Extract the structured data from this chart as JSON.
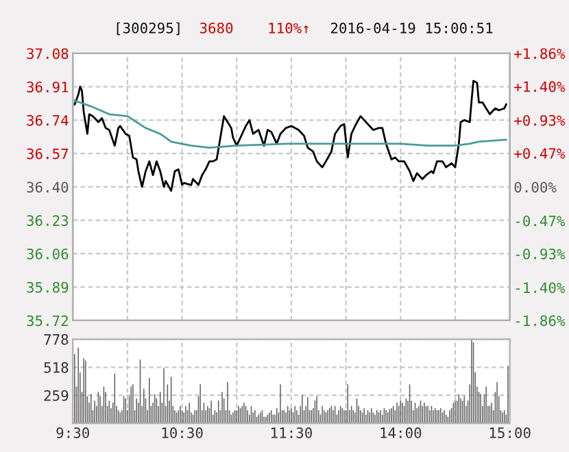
{
  "chart_data": [
    {
      "type": "line",
      "tick_labels": "y",
      "grid": true,
      "legend": false,
      "annotations": [
        "[300295]",
        "3680",
        "110%↑",
        "2016-04-19 15:00:51"
      ],
      "categories": [
        null,
        null,
        null,
        null,
        null,
        null,
        null,
        null,
        null,
        null,
        null,
        null,
        null,
        null,
        null,
        null,
        null,
        null,
        null,
        null,
        null,
        null,
        null,
        null,
        null,
        null,
        null,
        null,
        null,
        null,
        null,
        null,
        null,
        null,
        null,
        null,
        null,
        null,
        null,
        null,
        null,
        null,
        null,
        null,
        null,
        null,
        null,
        null,
        null,
        null,
        null,
        null,
        null,
        null,
        null,
        null,
        null,
        null,
        null,
        null,
        null,
        null,
        null,
        null,
        null,
        null,
        null,
        null,
        null,
        null,
        null,
        null,
        null,
        null,
        null,
        null,
        null,
        null,
        null,
        null,
        null,
        null,
        null,
        null,
        null,
        null,
        null,
        null,
        null,
        null,
        null,
        null,
        null,
        null,
        null,
        null,
        null,
        null,
        null,
        null,
        null,
        null,
        null,
        null,
        null,
        null,
        null,
        null,
        null,
        null,
        null,
        null,
        null,
        null,
        null,
        null,
        null,
        null,
        null,
        null,
        null,
        null,
        null,
        null,
        null,
        null,
        null,
        null,
        null,
        null,
        null,
        null,
        null,
        null,
        null,
        null,
        null,
        null,
        null,
        null,
        null,
        null,
        null,
        null,
        null,
        null,
        null,
        null,
        null,
        null,
        null,
        null,
        null,
        null,
        null,
        null,
        null,
        null,
        null,
        null,
        null,
        null,
        null,
        null,
        null,
        null,
        null,
        null,
        null,
        null,
        null,
        null,
        null,
        null,
        null,
        null,
        null,
        null,
        null,
        null,
        null,
        null,
        null,
        null,
        null,
        null,
        null,
        null,
        null,
        null,
        null,
        null,
        null,
        null,
        null,
        null,
        null,
        null,
        null,
        null,
        null,
        null,
        null,
        null,
        null,
        null,
        null,
        null,
        null,
        null,
        null,
        null,
        null,
        null,
        null,
        null,
        null,
        null,
        null,
        null,
        null,
        null,
        null,
        null,
        null,
        null,
        null,
        null,
        null,
        null,
        null,
        null,
        null,
        null,
        null,
        null,
        null,
        null,
        null,
        null,
        null
      ],
      "ylim": [
        35.72,
        37.08
      ],
      "yticks": [
        35.72,
        35.89,
        36.06,
        36.23,
        {
          "value": 36.4,
          "label": "36.40"
        },
        36.57,
        36.74,
        36.91,
        37.08
      ],
      "y2lim": [
        -1.86,
        1.86
      ],
      "y2ticks": [
        {
          "value": -1.86,
          "label": "-1.86%"
        },
        {
          "value": -1.4,
          "label": "-1.40%"
        },
        {
          "value": -0.93,
          "label": "-0.93%"
        },
        {
          "value": -0.47,
          "label": "-0.47%"
        },
        {
          "value": 0,
          "label": "0.00%"
        },
        {
          "value": 0.47,
          "label": "+0.47%"
        },
        {
          "value": 0.93,
          "label": "+0.93%"
        },
        {
          "value": 1.4,
          "label": "+1.40%"
        },
        {
          "value": 1.86,
          "label": "+1.86%"
        }
      ],
      "series": [
        {
          "color": "#000000",
          "values": [
            null,
            36.82,
            null,
            36.87,
            36.91,
            36.89,
            36.78,
            null,
            36.67,
            36.77,
            null,
            36.76,
            null,
            null,
            36.73,
            null,
            36.75,
            null,
            36.7,
            null,
            36.69,
            null,
            null,
            36.61,
            null,
            36.7,
            36.71,
            null,
            null,
            36.67,
            null,
            36.66,
            null,
            36.55,
            null,
            36.54,
            36.48,
            null,
            36.4,
            null,
            36.48,
            null,
            36.53,
            null,
            36.46,
            null,
            36.53,
            null,
            36.48,
            null,
            36.4,
            36.43,
            null,
            null,
            36.38,
            null,
            36.48,
            null,
            36.49,
            null,
            36.41,
            36.42,
            null,
            null,
            null,
            36.41,
            36.44,
            null,
            null,
            36.41,
            null,
            36.46,
            null,
            36.49,
            null,
            36.53,
            null,
            36.53,
            null,
            36.54,
            null,
            36.65,
            null,
            36.76,
            null,
            36.73,
            null,
            36.7,
            36.65,
            null,
            36.61,
            null,
            null,
            36.67,
            null,
            36.71,
            null,
            36.74,
            null,
            36.67,
            null,
            null,
            36.69,
            null,
            null,
            36.61,
            null,
            36.69,
            null,
            36.68,
            null,
            null,
            36.62,
            null,
            36.67,
            null,
            null,
            36.7,
            null,
            null,
            36.71,
            null,
            null,
            null,
            36.69,
            null,
            null,
            36.66,
            null,
            36.6,
            null,
            null,
            36.58,
            null,
            36.53,
            null,
            null,
            36.5,
            null,
            36.53,
            null,
            null,
            36.58,
            null,
            36.67,
            null,
            null,
            36.71,
            null,
            36.72,
            null,
            36.55,
            null,
            36.67,
            null,
            36.71,
            null,
            null,
            36.76,
            null,
            36.74,
            null,
            null,
            36.71,
            null,
            36.69,
            null,
            null,
            36.7,
            null,
            36.7,
            null,
            36.62,
            null,
            null,
            36.54,
            null,
            36.55,
            null,
            36.53,
            null,
            null,
            36.53,
            null,
            null,
            36.48,
            null,
            36.43,
            null,
            36.47,
            null,
            null,
            36.44,
            null,
            36.46,
            null,
            null,
            36.48,
            36.47,
            null,
            36.53,
            null,
            null,
            36.53,
            null,
            36.5,
            null,
            null,
            36.52,
            null,
            36.5,
            null,
            36.62,
            36.73,
            null,
            36.74,
            null,
            null,
            36.73,
            36.84,
            36.94,
            null,
            36.93,
            36.83,
            null,
            36.83,
            null,
            36.8,
            null,
            36.77,
            null,
            null,
            36.8,
            null,
            36.79,
            null,
            null,
            36.8,
            36.82,
            null,
            null
          ]
        },
        {
          "color": "#4a9a9a",
          "values": [
            null,
            36.84,
            null,
            null,
            null,
            null,
            null,
            null,
            null,
            null,
            36.81,
            null,
            null,
            null,
            null,
            null,
            null,
            null,
            null,
            null,
            36.77,
            null,
            null,
            null,
            null,
            null,
            null,
            null,
            null,
            null,
            36.76,
            null,
            null,
            null,
            null,
            36.73,
            null,
            null,
            null,
            null,
            36.7,
            null,
            null,
            null,
            null,
            null,
            null,
            null,
            36.67,
            null,
            null,
            null,
            null,
            null,
            36.63,
            null,
            null,
            null,
            null,
            null,
            null,
            null,
            null,
            null,
            null,
            36.61,
            null,
            null,
            null,
            null,
            null,
            null,
            null,
            null,
            null,
            36.6,
            null,
            null,
            null,
            null,
            null,
            null,
            null,
            null,
            null,
            null,
            null,
            null,
            null,
            null,
            36.61,
            null,
            null,
            null,
            null,
            null,
            null,
            null,
            null,
            null,
            null,
            null,
            null,
            null,
            null,
            null,
            null,
            null,
            null,
            null,
            null,
            null,
            null,
            null,
            null,
            null,
            null,
            null,
            36.62,
            null,
            null,
            null,
            null,
            null,
            null,
            null,
            null,
            null,
            null,
            null,
            null,
            null,
            null,
            null,
            null,
            36.62,
            null,
            null,
            null,
            null,
            null,
            null,
            null,
            null,
            null,
            null,
            null,
            null,
            null,
            null,
            null,
            null,
            null,
            null,
            null,
            null,
            null,
            null,
            null,
            null,
            36.62,
            null,
            null,
            null,
            null,
            null,
            null,
            null,
            null,
            null,
            null,
            null,
            null,
            null,
            null,
            null,
            null,
            null,
            null,
            null,
            36.62,
            null,
            null,
            null,
            null,
            null,
            null,
            null,
            null,
            null,
            null,
            null,
            null,
            null,
            null,
            36.61,
            null,
            null,
            null,
            null,
            null,
            null,
            null,
            null,
            null,
            null,
            null,
            null,
            null,
            null,
            36.61,
            null,
            null,
            null,
            null,
            null,
            null,
            null,
            36.62,
            null,
            null,
            null,
            null,
            36.63,
            null,
            null,
            null,
            null,
            null,
            null,
            null,
            null,
            null,
            null,
            null,
            null,
            null,
            null,
            36.64,
            null,
            null
          ]
        }
      ]
    },
    {
      "type": "bar",
      "grid": true,
      "color": "#666666",
      "categories": [
        "9:30",
        null,
        null,
        null,
        null,
        null,
        null,
        null,
        null,
        null,
        null,
        null,
        null,
        null,
        null,
        null,
        null,
        null,
        null,
        null,
        null,
        null,
        null,
        null,
        null,
        null,
        null,
        null,
        null,
        null,
        null,
        null,
        null,
        null,
        null,
        null,
        null,
        null,
        null,
        null,
        null,
        null,
        null,
        null,
        null,
        null,
        null,
        null,
        null,
        null,
        null,
        null,
        null,
        null,
        null,
        null,
        null,
        null,
        null,
        null,
        "10:30",
        null,
        null,
        null,
        null,
        null,
        null,
        null,
        null,
        null,
        null,
        null,
        null,
        null,
        null,
        null,
        null,
        null,
        null,
        null,
        null,
        null,
        null,
        null,
        null,
        null,
        null,
        null,
        null,
        null,
        null,
        null,
        null,
        null,
        null,
        null,
        null,
        null,
        null,
        null,
        null,
        null,
        null,
        null,
        null,
        null,
        null,
        null,
        null,
        null,
        null,
        null,
        null,
        null,
        null,
        null,
        null,
        null,
        null,
        null,
        "11:30",
        null,
        null,
        null,
        null,
        null,
        null,
        null,
        null,
        null,
        null,
        null,
        null,
        null,
        null,
        null,
        null,
        null,
        null,
        null,
        null,
        null,
        null,
        null,
        null,
        null,
        null,
        null,
        null,
        null,
        null,
        null,
        null,
        null,
        null,
        null,
        null,
        null,
        null,
        null,
        null,
        null,
        null,
        null,
        null,
        null,
        null,
        null,
        null,
        null,
        null,
        null,
        null,
        null,
        null,
        null,
        null,
        null,
        null,
        null,
        "14:00",
        null,
        null,
        null,
        null,
        null,
        null,
        null,
        null,
        null,
        null,
        null,
        null,
        null,
        null,
        null,
        null,
        null,
        null,
        null,
        null,
        null,
        null,
        null,
        null,
        null,
        null,
        null,
        null,
        null,
        null,
        null,
        null,
        null,
        null,
        null,
        null,
        null,
        null,
        null,
        null,
        null,
        null,
        null,
        null,
        null,
        null,
        null,
        null,
        null,
        null,
        null,
        null,
        null,
        null,
        null,
        null,
        null,
        null,
        null,
        "15:00"
      ],
      "ylim": [
        0,
        778
      ],
      "yticks": [
        259,
        518,
        778
      ],
      "values": [
        null,
        640,
        340,
        700,
        470,
        290,
        600,
        580,
        250,
        190,
        270,
        120,
        210,
        160,
        290,
        250,
        160,
        340,
        290,
        160,
        210,
        140,
        190,
        460,
        160,
        120,
        100,
        120,
        250,
        230,
        120,
        250,
        340,
        360,
        120,
        230,
        190,
        590,
        160,
        320,
        230,
        120,
        420,
        160,
        190,
        270,
        230,
        160,
        290,
        190,
        510,
        160,
        360,
        210,
        430,
        160,
        120,
        100,
        120,
        160,
        120,
        100,
        160,
        120,
        190,
        100,
        80,
        120,
        120,
        250,
        360,
        120,
        190,
        120,
        160,
        140,
        210,
        80,
        120,
        100,
        210,
        120,
        290,
        230,
        120,
        380,
        120,
        80,
        100,
        120,
        120,
        160,
        140,
        160,
        190,
        160,
        120,
        80,
        160,
        100,
        120,
        60,
        80,
        100,
        120,
        60,
        60,
        80,
        100,
        120,
        80,
        80,
        140,
        100,
        360,
        120,
        120,
        100,
        160,
        120,
        140,
        100,
        160,
        120,
        80,
        160,
        260,
        120,
        160,
        240,
        120,
        120,
        140,
        210,
        250,
        120,
        80,
        160,
        120,
        100,
        120,
        140,
        160,
        120,
        160,
        80,
        120,
        160,
        140,
        120,
        120,
        360,
        120,
        160,
        120,
        100,
        230,
        160,
        120,
        100,
        140,
        80,
        120,
        100,
        140,
        100,
        80,
        120,
        100,
        120,
        80,
        140,
        120,
        100,
        130,
        140,
        160,
        120,
        190,
        160,
        210,
        190,
        160,
        230,
        210,
        360,
        210,
        120,
        190,
        140,
        160,
        210,
        160,
        190,
        160,
        160,
        120,
        160,
        120,
        140,
        120,
        120,
        140,
        100,
        120,
        80,
        60,
        120,
        140,
        190,
        210,
        210,
        270,
        230,
        210,
        250,
        160,
        210,
        360,
        770,
        750,
        470,
        340,
        290,
        270,
        160,
        270,
        340,
        160,
        160,
        190,
        120,
        290,
        380,
        250,
        120,
        100,
        120,
        80,
        530,
        null
      ]
    }
  ]
}
